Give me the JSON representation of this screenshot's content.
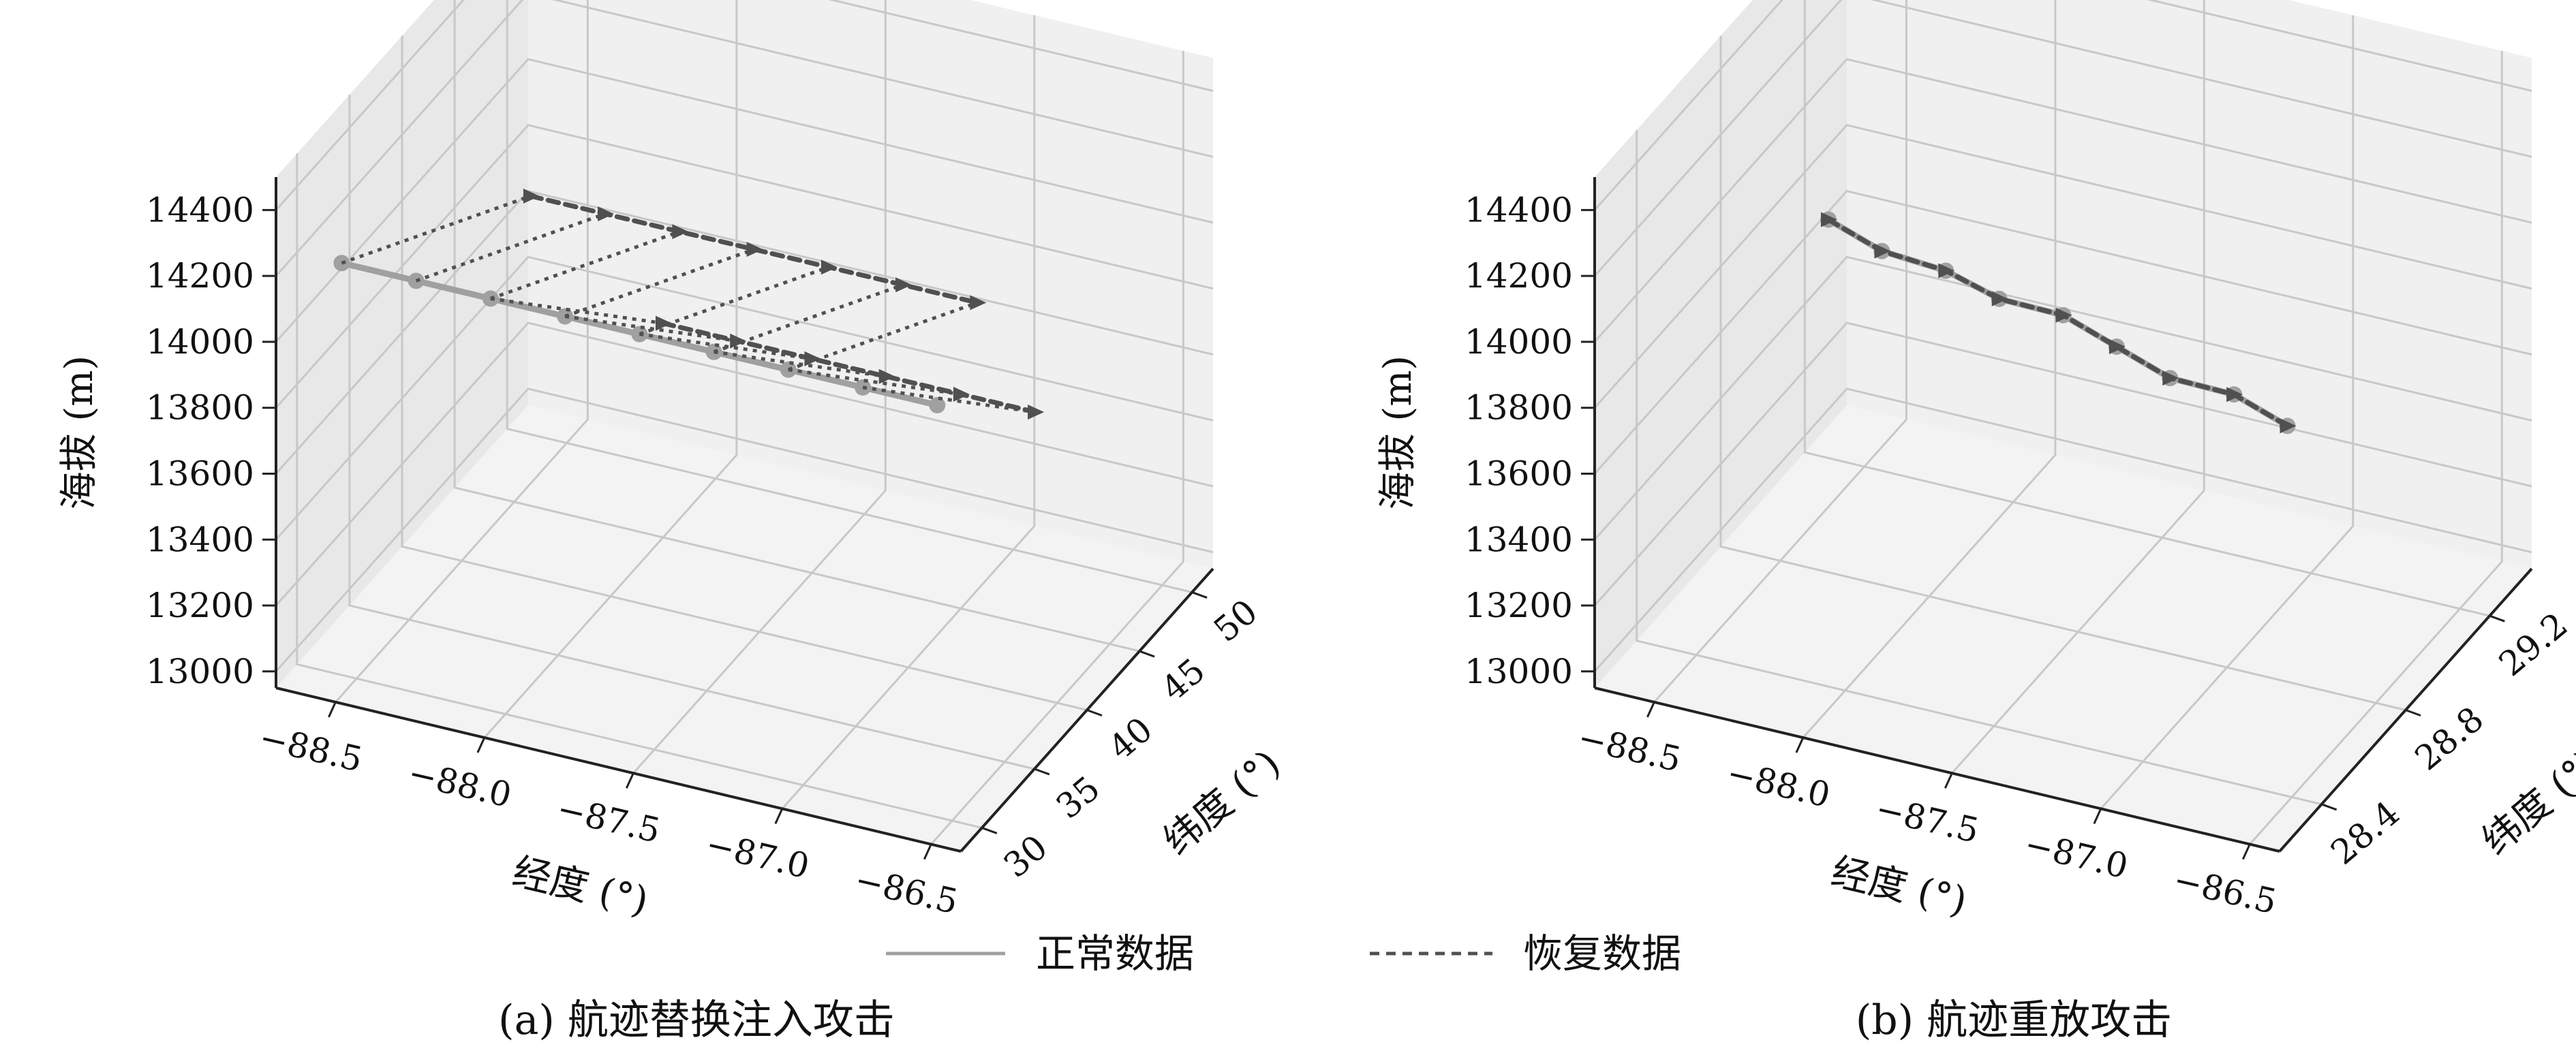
{
  "legend": {
    "normal_label": "正常数据",
    "recovered_label": "恢复数据",
    "normal_color": "#a0a0a0",
    "recovered_color": "#505050"
  },
  "chart_data": [
    {
      "type": "line",
      "projection": "3d",
      "caption": "(a) 航迹替换注入攻击",
      "xlabel": "经度 (°)",
      "ylabel": "纬度 (°)",
      "zlabel": "海拔 (m)",
      "x_ticks": [
        "−88.5",
        "−88.0",
        "−87.5",
        "−87.0",
        "−86.5"
      ],
      "y_ticks": [
        "30",
        "35",
        "40",
        "45",
        "50"
      ],
      "z_ticks": [
        "13000",
        "13200",
        "13400",
        "13600",
        "13800",
        "14000",
        "14200",
        "14400"
      ],
      "xlim": [
        -88.7,
        -86.4
      ],
      "ylim": [
        28,
        52
      ],
      "zlim": [
        12950,
        14500
      ],
      "grid": true,
      "series": [
        {
          "name": "正常数据",
          "x": [
            -88.55,
            -88.3,
            -88.05,
            -87.8,
            -87.55,
            -87.3,
            -87.05,
            -86.8,
            -86.55
          ],
          "y": [
            30,
            30,
            30,
            30,
            30,
            30,
            30,
            30,
            30
          ],
          "z": [
            14200,
            14200,
            14200,
            14200,
            14200,
            14200,
            14200,
            14200,
            14200
          ]
        },
        {
          "name": "恢复数据",
          "x": [
            -88.55,
            -88.3,
            -88.05,
            -87.8,
            -87.55,
            -87.3,
            -87.05
          ],
          "y": [
            48,
            48,
            48,
            48,
            48,
            48,
            48
          ],
          "z": [
            13760,
            13760,
            13760,
            13760,
            13760,
            13760,
            13760
          ]
        },
        {
          "name": "恢复数据",
          "x": [
            -88.0,
            -87.75,
            -87.5,
            -87.25,
            -87.0,
            -86.75
          ],
          "y": [
            45,
            45,
            45,
            45,
            45,
            45
          ],
          "z": [
            13600,
            13600,
            13600,
            13600,
            13600,
            13600
          ]
        }
      ]
    },
    {
      "type": "line",
      "projection": "3d",
      "caption": "(b) 航迹重放攻击",
      "xlabel": "经度 (°)",
      "ylabel": "纬度 (°)",
      "zlabel": "海拔 (m)",
      "x_ticks": [
        "−88.5",
        "−88.0",
        "−87.5",
        "−87.0",
        "−86.5"
      ],
      "y_ticks": [
        "28.4",
        "28.8",
        "29.2"
      ],
      "z_ticks": [
        "13000",
        "13200",
        "13400",
        "13600",
        "13800",
        "14000",
        "14200",
        "14400"
      ],
      "xlim": [
        -88.7,
        -86.4
      ],
      "ylim": [
        28.2,
        29.4
      ],
      "zlim": [
        12950,
        14500
      ],
      "grid": true,
      "series": [
        {
          "name": "正常数据",
          "x": [
            -88.55,
            -88.3,
            -88.05,
            -87.8,
            -87.55,
            -87.3,
            -87.05,
            -86.8,
            -86.55
          ],
          "y": [
            29.1,
            29.0,
            28.95,
            28.85,
            28.8,
            28.7,
            28.6,
            28.55,
            28.45
          ],
          "z": [
            13760,
            13790,
            13820,
            13860,
            13900,
            13930,
            13960,
            14000,
            14030
          ]
        },
        {
          "name": "恢复数据",
          "x": [
            -88.55,
            -88.3,
            -88.05,
            -87.8,
            -87.55,
            -87.3,
            -87.05,
            -86.8,
            -86.55
          ],
          "y": [
            29.1,
            29.0,
            28.95,
            28.85,
            28.8,
            28.7,
            28.6,
            28.55,
            28.45
          ],
          "z": [
            13760,
            13790,
            13820,
            13860,
            13900,
            13930,
            13960,
            14000,
            14030
          ]
        }
      ]
    }
  ]
}
